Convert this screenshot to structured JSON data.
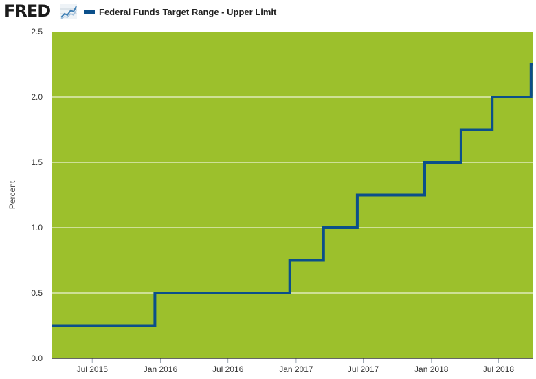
{
  "header": {
    "logo_text": "FRED",
    "logo_icon": "line-chart-icon",
    "legend_label": "Federal Funds Target Range - Upper Limit",
    "legend_color": "#0b4f8a"
  },
  "chart_data": {
    "type": "line",
    "step": true,
    "series": [
      {
        "name": "Federal Funds Target Range - Upper Limit",
        "color": "#0b4f8a",
        "points": [
          [
            "2015-03-15",
            0.25
          ],
          [
            "2015-12-17",
            0.25
          ],
          [
            "2015-12-17",
            0.5
          ],
          [
            "2016-12-15",
            0.5
          ],
          [
            "2016-12-15",
            0.75
          ],
          [
            "2017-03-16",
            0.75
          ],
          [
            "2017-03-16",
            1.0
          ],
          [
            "2017-06-15",
            1.0
          ],
          [
            "2017-06-15",
            1.25
          ],
          [
            "2017-12-14",
            1.25
          ],
          [
            "2017-12-14",
            1.5
          ],
          [
            "2018-03-22",
            1.5
          ],
          [
            "2018-03-22",
            1.75
          ],
          [
            "2018-06-14",
            1.75
          ],
          [
            "2018-06-14",
            2.0
          ],
          [
            "2018-09-27",
            2.0
          ],
          [
            "2018-09-27",
            2.25
          ],
          [
            "2018-10-01",
            2.25
          ]
        ]
      }
    ],
    "x_ticks": [
      {
        "date": "2015-07-01",
        "label": "Jul 2015"
      },
      {
        "date": "2016-01-01",
        "label": "Jan 2016"
      },
      {
        "date": "2016-07-01",
        "label": "Jul 2016"
      },
      {
        "date": "2017-01-01",
        "label": "Jan 2017"
      },
      {
        "date": "2017-07-01",
        "label": "Jul 2017"
      },
      {
        "date": "2018-01-01",
        "label": "Jan 2018"
      },
      {
        "date": "2018-07-01",
        "label": "Jul 2018"
      }
    ],
    "xlim": [
      "2015-03-15",
      "2018-10-01"
    ],
    "y_ticks": [
      {
        "value": 0.0,
        "label": "0.0"
      },
      {
        "value": 0.5,
        "label": "0.5"
      },
      {
        "value": 1.0,
        "label": "1.0"
      },
      {
        "value": 1.5,
        "label": "1.5"
      },
      {
        "value": 2.0,
        "label": "2.0"
      },
      {
        "value": 2.5,
        "label": "2.5"
      }
    ],
    "ylim": [
      0,
      2.5
    ],
    "ylabel": "Percent",
    "xlabel": "",
    "grid": true,
    "plot_background": "#9cc02c",
    "grid_color": "#ffffff",
    "legend_position": "top-left"
  }
}
